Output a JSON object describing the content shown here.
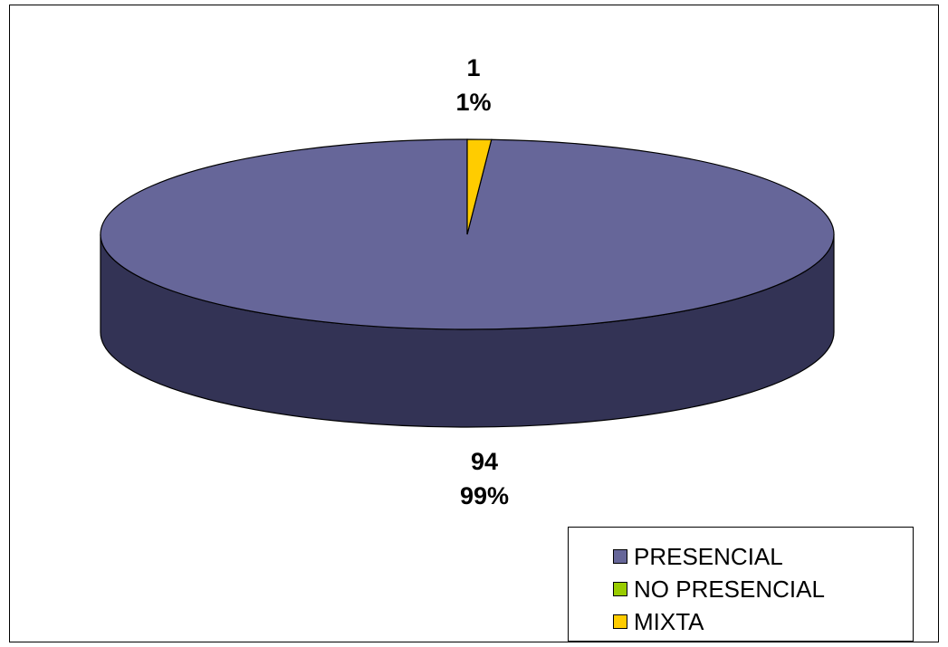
{
  "chart_data": {
    "type": "pie",
    "categories": [
      "PRESENCIAL",
      "NO PRESENCIAL",
      "MIXTA"
    ],
    "values": [
      94,
      0,
      1
    ],
    "percent_labels": [
      "99%",
      "",
      "1%"
    ],
    "value_labels": [
      "94",
      "",
      "1"
    ],
    "colors": [
      "#666699",
      "#99cc00",
      "#ffcc00"
    ],
    "side_colors": [
      "#333355",
      "#4d6600",
      "#806600"
    ],
    "style": "3d",
    "legend_position": "bottom-right"
  }
}
